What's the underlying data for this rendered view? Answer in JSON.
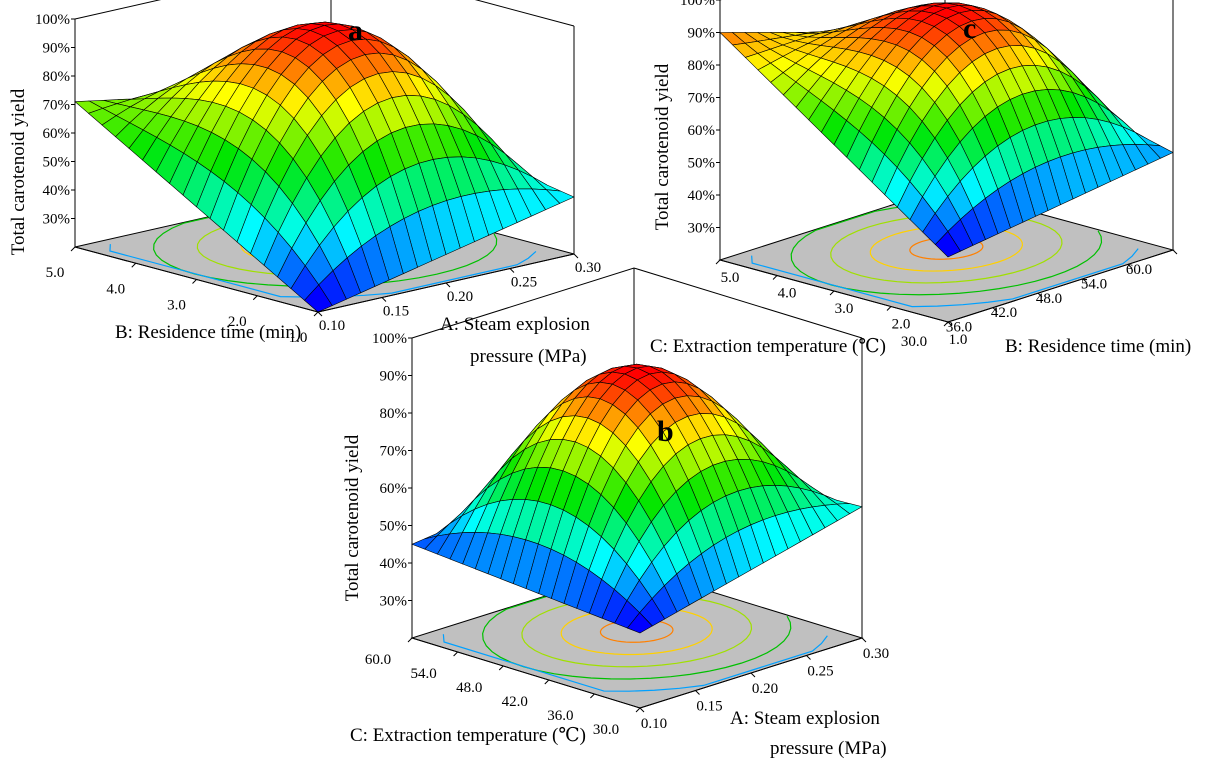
{
  "figure": {
    "panels": [
      {
        "id": "a",
        "letter": "a"
      },
      {
        "id": "c",
        "letter": "c"
      },
      {
        "id": "b",
        "letter": "b"
      }
    ]
  },
  "chart_data": [
    {
      "panel": "a",
      "type": "surface",
      "title": "a",
      "zlabel": "Total carotenoid yield",
      "xlabel_line1": "A: Steam explosion",
      "xlabel_line2": "pressure (MPa)",
      "ylabel": "B: Residence time (min)",
      "x_ticks": [
        "0.10",
        "0.15",
        "0.20",
        "0.25",
        "0.30"
      ],
      "y_ticks": [
        "1.0",
        "2.0",
        "3.0",
        "4.0",
        "5.0"
      ],
      "z_ticks": [
        "30%",
        "40%",
        "50%",
        "60%",
        "70%",
        "80%",
        "90%",
        "100%"
      ],
      "x_range": [
        0.1,
        0.3
      ],
      "y_range": [
        1.0,
        5.0
      ],
      "z_range": [
        20,
        100
      ],
      "surface_corners": {
        "x_min_y_min": 20,
        "x_max_y_min": 40,
        "x_min_y_max": 71,
        "x_max_y_max": 55
      },
      "surface_peak": 99,
      "contour_floor": true,
      "colormap": [
        "#0000ff",
        "#00ffff",
        "#00ff00",
        "#ffff00",
        "#ff0000"
      ]
    },
    {
      "panel": "c",
      "type": "surface",
      "title": "c",
      "zlabel": "Total carotenoid yield",
      "xlabel": "C: Extraction temperature (℃)",
      "ylabel": "B: Residence time (min)",
      "x_ticks": [
        "30.0",
        "36.0",
        "42.0",
        "48.0",
        "54.0",
        "60.0"
      ],
      "y_ticks": [
        "1.0",
        "2.0",
        "3.0",
        "4.0",
        "5.0"
      ],
      "z_ticks": [
        "30%",
        "40%",
        "50%",
        "60%",
        "70%",
        "80%",
        "90%",
        "100%"
      ],
      "x_range": [
        30.0,
        60.0
      ],
      "y_range": [
        1.0,
        5.0
      ],
      "z_range": [
        20,
        100
      ],
      "surface_corners": {
        "x_min_y_min": 40,
        "x_max_y_min": 50,
        "x_min_y_max": 90,
        "x_max_y_max": 68
      },
      "surface_peak": 96,
      "contour_floor": true
    },
    {
      "panel": "b",
      "type": "surface",
      "title": "b",
      "zlabel": "Total carotenoid yield",
      "xlabel_line1": "A: Steam explosion",
      "xlabel_line2": "pressure (MPa)",
      "ylabel": "C: Extraction temperature (℃)",
      "x_ticks": [
        "0.10",
        "0.15",
        "0.20",
        "0.25",
        "0.30"
      ],
      "y_ticks": [
        "30.0",
        "36.0",
        "42.0",
        "48.0",
        "54.0",
        "60.0"
      ],
      "z_ticks": [
        "30%",
        "40%",
        "50%",
        "60%",
        "70%",
        "80%",
        "90%",
        "100%"
      ],
      "x_range": [
        0.1,
        0.3
      ],
      "y_range": [
        30.0,
        60.0
      ],
      "z_range": [
        20,
        100
      ],
      "surface_corners": {
        "x_min_y_min": 40,
        "x_max_y_min": 55,
        "x_min_y_max": 45,
        "x_max_y_max": 52
      },
      "surface_peak": 92,
      "contour_floor": true
    }
  ]
}
